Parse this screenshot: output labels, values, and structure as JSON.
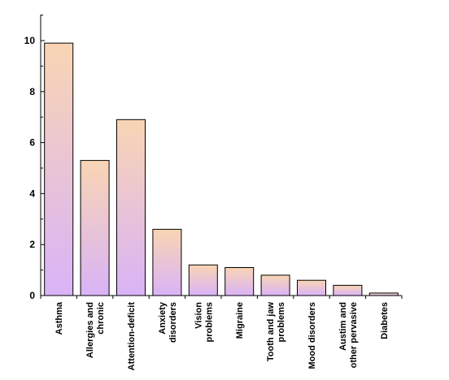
{
  "chart_data": {
    "type": "bar",
    "title": "",
    "xlabel": "",
    "ylabel": "",
    "ylim": [
      0,
      11
    ],
    "yticks": [
      0,
      2,
      4,
      6,
      8,
      10
    ],
    "grid": false,
    "categories": [
      [
        "Asthma"
      ],
      [
        "Allergies and",
        "chronic"
      ],
      [
        "Attention-deficit"
      ],
      [
        "Anxiety",
        "disorders"
      ],
      [
        "Vision",
        "problems"
      ],
      [
        "Migraine"
      ],
      [
        "Tooth and jaw",
        "problems"
      ],
      [
        "Mood disorders"
      ],
      [
        "Austim and",
        "other pervasive"
      ],
      [
        "Diabetes"
      ]
    ],
    "values": [
      9.9,
      5.3,
      6.9,
      2.6,
      1.2,
      1.1,
      0.8,
      0.6,
      0.4,
      0.1
    ],
    "colors": {
      "bar_top": "#f9d5b4",
      "bar_bottom": "#d9b3f7",
      "bar_stroke": "#000000"
    }
  }
}
